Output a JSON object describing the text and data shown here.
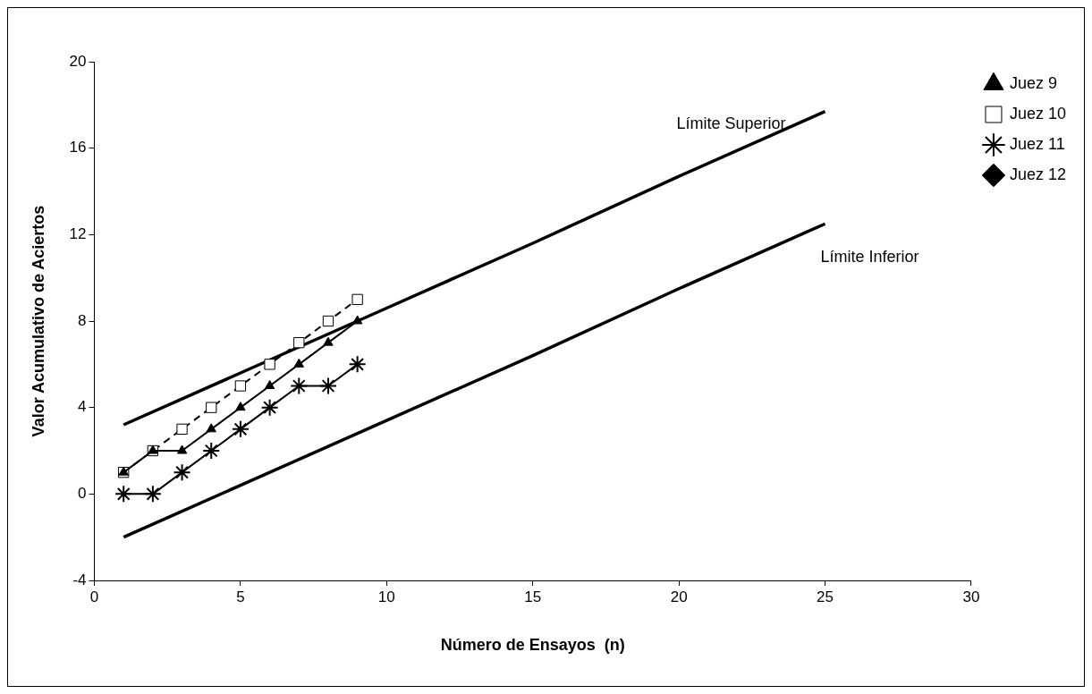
{
  "chart_data": {
    "type": "line",
    "xlabel": "Número de Ensayos  (n)",
    "ylabel": "Valor Acumulativo de Aciertos",
    "xlim": [
      0,
      30
    ],
    "xticks": [
      0,
      5,
      10,
      15,
      20,
      25,
      30
    ],
    "ylim": [
      -4,
      20
    ],
    "yticks": [
      -4,
      0,
      4,
      8,
      12,
      16,
      20
    ],
    "grid": false,
    "legend": "top right",
    "series": [
      {
        "name": "Juez 9",
        "color": "#000000",
        "marker": "triangle",
        "line_style": "solid",
        "x": [
          1,
          2,
          3,
          4,
          5,
          6,
          7,
          8,
          9
        ],
        "values": [
          1,
          2,
          2,
          3,
          4,
          5,
          6,
          7,
          8
        ]
      },
      {
        "name": "Juez 10",
        "color": "#000000",
        "marker": "square",
        "line_style": "dashed",
        "x": [
          1,
          2,
          3,
          4,
          5,
          6,
          7,
          8,
          9
        ],
        "values": [
          1,
          2,
          3,
          4,
          5,
          6,
          7,
          8,
          9
        ]
      },
      {
        "name": "Juez 11",
        "color": "#000000",
        "marker": "cross",
        "line_style": "solid",
        "x": [
          1,
          2,
          3,
          4,
          5,
          6,
          7,
          8,
          9
        ],
        "values": [
          0,
          0,
          1,
          2,
          3,
          4,
          5,
          5,
          6
        ]
      },
      {
        "name": "Juez 12",
        "color": "#000000",
        "marker": "diamond",
        "line_style": "solid"
      },
      {
        "name": "Límite Superior",
        "color": "#000000",
        "marker": "none",
        "line_style": "solid",
        "x": [
          1,
          5,
          10,
          15,
          20,
          25
        ],
        "values": [
          3.2,
          5.6,
          8.6,
          11.6,
          14.7,
          17.7
        ]
      },
      {
        "name": "Límite Inferior",
        "color": "#000000",
        "marker": "none",
        "line_style": "solid",
        "x": [
          1,
          5,
          10,
          15,
          20,
          25
        ],
        "values": [
          -2.0,
          0.4,
          3.4,
          6.4,
          9.5,
          12.5
        ]
      }
    ]
  }
}
